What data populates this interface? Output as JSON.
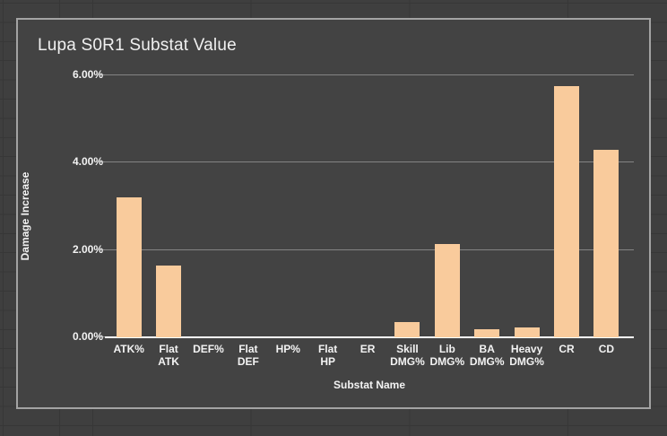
{
  "chart_data": {
    "type": "bar",
    "title": "Lupa S0R1 Substat Value",
    "xlabel": "Substat Name",
    "ylabel": "Damage Increase",
    "categories": [
      "ATK%",
      "Flat ATK",
      "DEF%",
      "Flat DEF",
      "HP%",
      "Flat HP",
      "ER",
      "Skill DMG%",
      "Lib DMG%",
      "BA DMG%",
      "Heavy DMG%",
      "CR",
      "CD"
    ],
    "values": [
      3.21,
      1.65,
      0,
      0,
      0,
      0,
      0,
      0.34,
      2.13,
      0.18,
      0.23,
      5.75,
      4.29
    ],
    "value_unit": "%",
    "y_ticks": [
      "0.00%",
      "2.00%",
      "4.00%",
      "6.00%"
    ],
    "ylim": [
      0,
      6
    ],
    "bar_color": "#f9cb9c",
    "grid": true,
    "legend": "none"
  }
}
